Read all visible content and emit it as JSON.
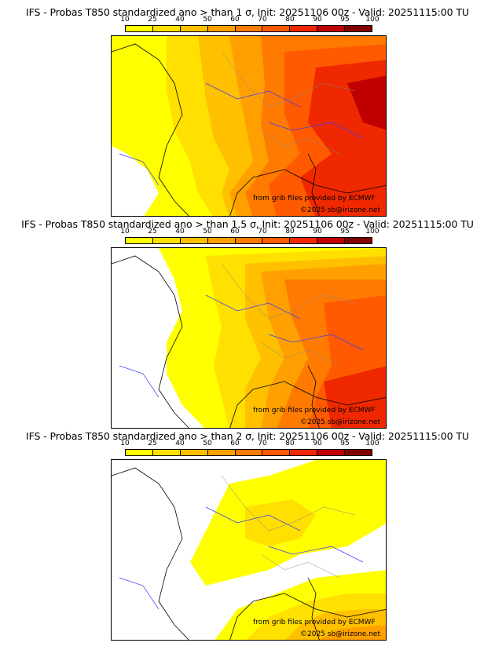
{
  "colorbar": {
    "ticks": [
      "10",
      "25",
      "40",
      "50",
      "60",
      "70",
      "80",
      "90",
      "95",
      "100"
    ],
    "colors": [
      "#ffff00",
      "#ffe000",
      "#ffc000",
      "#ffa000",
      "#ff7a00",
      "#ff5a00",
      "#f02800",
      "#c00000",
      "#800000"
    ]
  },
  "panels": [
    {
      "title": "IFS - Probas T850  standardized ano > than 1 σ, Init: 20251106 00z - Valid: 20251115:00 TU",
      "credit_source": "from grib files provided by ECMWF",
      "credit_copyright": "©2025 sb@irizone.net",
      "threshold_sigma": 1
    },
    {
      "title": "IFS - Probas T850  standardized ano > than 1.5 σ, Init: 20251106 00z - Valid: 20251115:00 TU",
      "credit_source": "from grib files provided by ECMWF",
      "credit_copyright": "©2025 sb@irizone.net",
      "threshold_sigma": 1.5
    },
    {
      "title": "IFS - Probas T850  standardized ano > than 2 σ, Init: 20251106 00z - Valid: 20251115:00 TU",
      "credit_source": "from grib files provided by ECMWF",
      "credit_copyright": "©2025 sb@irizone.net",
      "threshold_sigma": 2
    }
  ]
}
